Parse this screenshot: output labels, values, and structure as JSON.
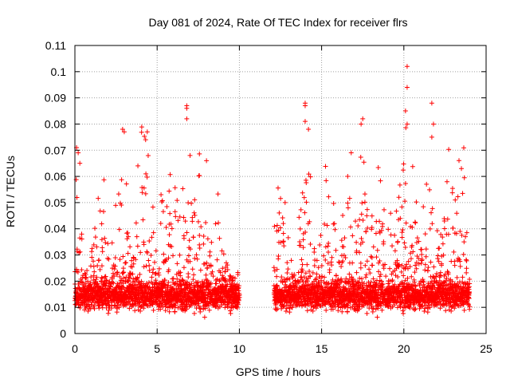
{
  "chart_data": {
    "type": "scatter",
    "title": "Day 081 of 2024, Rate Of TEC Index for receiver flrs",
    "xlabel": "GPS time / hours",
    "ylabel": "ROTI / TECUs",
    "xlim": [
      0,
      25
    ],
    "ylim": [
      0,
      0.11
    ],
    "xticks": [
      0,
      5,
      10,
      15,
      20,
      25
    ],
    "xtick_labels": [
      "0",
      "5",
      "10",
      "15",
      "20",
      "25"
    ],
    "yticks": [
      0,
      0.01,
      0.02,
      0.03,
      0.04,
      0.05,
      0.06,
      0.07,
      0.08,
      0.09,
      0.1,
      0.11
    ],
    "ytick_labels": [
      "0",
      "0.01",
      "0.02",
      "0.03",
      "0.04",
      "0.05",
      "0.06",
      "0.07",
      "0.08",
      "0.09",
      "0.1",
      "0.11"
    ],
    "grid": true,
    "marker": "+",
    "series_color": "#ff0000",
    "series": [
      {
        "name": "ROTI",
        "segments": [
          [
            0,
            10
          ],
          [
            12.1,
            24
          ]
        ],
        "highlights": [
          {
            "x": 0.1,
            "y": 0.071
          },
          {
            "x": 0.2,
            "y": 0.069
          },
          {
            "x": 0.3,
            "y": 0.065
          },
          {
            "x": 2.9,
            "y": 0.078
          },
          {
            "x": 3.0,
            "y": 0.077
          },
          {
            "x": 4.4,
            "y": 0.077
          },
          {
            "x": 4.3,
            "y": 0.074
          },
          {
            "x": 6.8,
            "y": 0.087
          },
          {
            "x": 6.8,
            "y": 0.086
          },
          {
            "x": 6.8,
            "y": 0.082
          },
          {
            "x": 7.0,
            "y": 0.068
          },
          {
            "x": 8.0,
            "y": 0.066
          },
          {
            "x": 14.0,
            "y": 0.088
          },
          {
            "x": 14.0,
            "y": 0.087
          },
          {
            "x": 14.0,
            "y": 0.081
          },
          {
            "x": 14.2,
            "y": 0.078
          },
          {
            "x": 17.4,
            "y": 0.08
          },
          {
            "x": 17.5,
            "y": 0.082
          },
          {
            "x": 16.8,
            "y": 0.069
          },
          {
            "x": 20.2,
            "y": 0.102
          },
          {
            "x": 20.2,
            "y": 0.094
          },
          {
            "x": 20.1,
            "y": 0.085
          },
          {
            "x": 20.2,
            "y": 0.08
          },
          {
            "x": 21.7,
            "y": 0.088
          },
          {
            "x": 21.8,
            "y": 0.08
          },
          {
            "x": 21.7,
            "y": 0.075
          },
          {
            "x": 23.5,
            "y": 0.063
          }
        ]
      }
    ]
  }
}
